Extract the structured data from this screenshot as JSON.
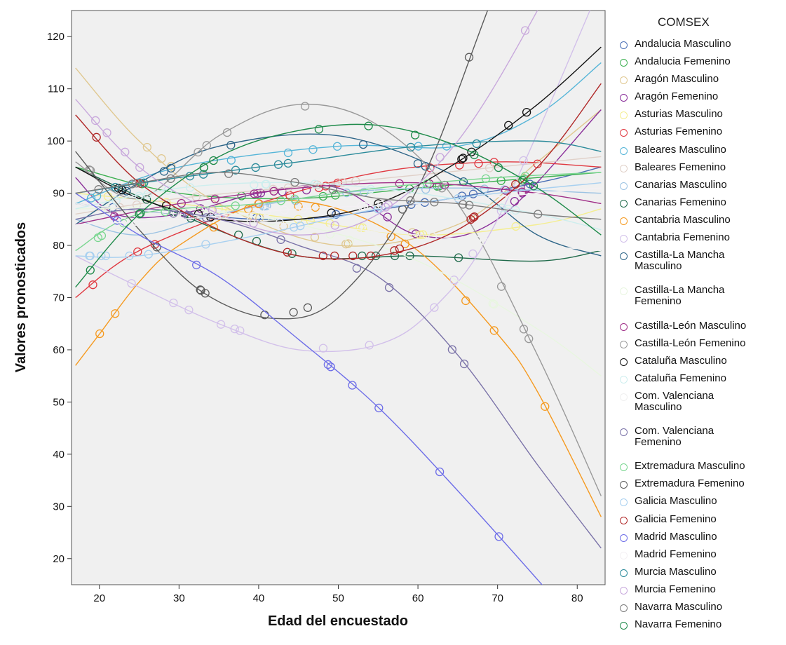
{
  "chart_data": {
    "type": "line",
    "xlabel": "Edad del encuestado",
    "ylabel": "Valores pronosticados",
    "xlim": [
      16.5,
      83.5
    ],
    "ylim": [
      15,
      125
    ],
    "x_ticks": [
      20,
      30,
      40,
      50,
      60,
      70,
      80
    ],
    "y_ticks": [
      20,
      30,
      40,
      50,
      60,
      70,
      80,
      90,
      100,
      110,
      120
    ],
    "grid": false,
    "legend_title": "COMSEX",
    "legend_position": "right",
    "series": [
      {
        "name": "Andalucia Masculino",
        "color": "#4a6fb5",
        "x": [
          17,
          30,
          45,
          60,
          75,
          83
        ],
        "y": [
          88,
          86,
          85,
          88,
          92,
          95
        ]
      },
      {
        "name": "Andalucia Femenino",
        "color": "#3cb050",
        "x": [
          17,
          30,
          45,
          60,
          75,
          83
        ],
        "y": [
          95,
          90,
          89,
          91,
          93,
          94
        ]
      },
      {
        "name": "Aragón Masculino",
        "color": "#e0c890",
        "x": [
          17,
          25,
          35,
          50,
          65,
          75,
          83
        ],
        "y": [
          114,
          100,
          88,
          80,
          84,
          96,
          106
        ]
      },
      {
        "name": "Aragón Femenino",
        "color": "#8a2f9a",
        "x": [
          17,
          22,
          30,
          40,
          50,
          60,
          70,
          83
        ],
        "y": [
          93,
          86,
          86,
          90,
          91,
          82,
          85,
          106
        ]
      },
      {
        "name": "Asturias Masculino",
        "color": "#f4ee90",
        "x": [
          17,
          30,
          45,
          60,
          75,
          83
        ],
        "y": [
          90,
          88,
          85,
          82,
          84,
          87
        ]
      },
      {
        "name": "Asturias Femenino",
        "color": "#e03840",
        "x": [
          17,
          25,
          40,
          55,
          70,
          83
        ],
        "y": [
          70,
          79,
          88,
          94,
          96,
          95
        ]
      },
      {
        "name": "Baleares Masculino",
        "color": "#55b5d8",
        "x": [
          17,
          30,
          50,
          65,
          75,
          83
        ],
        "y": [
          88,
          95,
          99,
          99,
          105,
          115
        ]
      },
      {
        "name": "Baleares Femenino",
        "color": "#e0d0c8",
        "x": [
          17,
          30,
          50,
          70,
          83
        ],
        "y": [
          86,
          89,
          92,
          95,
          97
        ]
      },
      {
        "name": "Canarias Masculino",
        "color": "#9cc3e3",
        "x": [
          17,
          25,
          35,
          50,
          65,
          83
        ],
        "y": [
          85,
          82,
          86,
          90,
          91,
          90
        ]
      },
      {
        "name": "Canarias Femenino",
        "color": "#1f6a4a",
        "x": [
          17,
          30,
          45,
          60,
          75,
          83
        ],
        "y": [
          95,
          86,
          78,
          78,
          77,
          79
        ]
      },
      {
        "name": "Cantabria Masculino",
        "color": "#f59a20",
        "x": [
          17,
          20,
          25,
          30,
          40,
          50,
          60,
          70,
          75,
          83
        ],
        "y": [
          57,
          63,
          73,
          80,
          88,
          87,
          79,
          63,
          52,
          28
        ]
      },
      {
        "name": "Cantabria Femenino",
        "color": "#d2c0ea",
        "x": [
          17,
          25,
          35,
          45,
          55,
          62,
          70,
          83
        ],
        "y": [
          78,
          72,
          65,
          60,
          61,
          68,
          85,
          130
        ]
      },
      {
        "name": "Castilla-La Mancha Masculino",
        "color": "#2d6588",
        "x": [
          17,
          25,
          35,
          50,
          65,
          75,
          83
        ],
        "y": [
          84,
          92,
          99,
          101,
          93,
          82,
          78
        ]
      },
      {
        "name": "Castilla-La Mancha Femenino",
        "color": "#e8f6e0",
        "x": [
          17,
          30,
          45,
          60,
          75,
          83
        ],
        "y": [
          87,
          87,
          84,
          77,
          64,
          55
        ]
      },
      {
        "name": "Castilla-León Masculino",
        "color": "#a03088",
        "x": [
          17,
          20,
          30,
          45,
          60,
          75,
          83
        ],
        "y": [
          84,
          85,
          88,
          91,
          92,
          90,
          88
        ]
      },
      {
        "name": "Castilla-León Femenino",
        "color": "#999999",
        "x": [
          17,
          25,
          35,
          45,
          55,
          65,
          75,
          83
        ],
        "y": [
          96,
          89,
          101,
          107,
          103,
          88,
          59,
          32
        ]
      },
      {
        "name": "Cataluña Masculino",
        "color": "#111111",
        "x": [
          17,
          25,
          35,
          45,
          55,
          65,
          75,
          83
        ],
        "y": [
          95,
          89,
          85,
          85,
          88,
          96,
          107,
          118
        ]
      },
      {
        "name": "Cataluña Femenino",
        "color": "#cdeeee",
        "x": [
          17,
          30,
          45,
          60,
          75,
          83
        ],
        "y": [
          87,
          91,
          92,
          90,
          86,
          83
        ]
      },
      {
        "name": "Com. Valenciana Masculino",
        "color": "#f0f0f0",
        "x": [
          17,
          30,
          45,
          60,
          75,
          83
        ],
        "y": [
          88,
          86,
          84,
          82,
          80,
          79
        ]
      },
      {
        "name": "Com. Valenciana Femenino",
        "color": "#7a72a8",
        "x": [
          17,
          25,
          35,
          45,
          55,
          65,
          75,
          83
        ],
        "y": [
          85,
          87,
          85,
          80,
          74,
          59,
          38,
          22
        ]
      },
      {
        "name": "Extremadura Masculino",
        "color": "#7ad690",
        "x": [
          17,
          25,
          40,
          55,
          70,
          83
        ],
        "y": [
          79,
          86,
          88,
          91,
          93,
          94
        ]
      },
      {
        "name": "Extremadura Femenino",
        "color": "#5a5a5a",
        "x": [
          17,
          25,
          33,
          42,
          50,
          60,
          70,
          83
        ],
        "y": [
          98,
          83,
          71,
          66,
          70,
          91,
          130,
          180
        ]
      },
      {
        "name": "Galicia Masculino",
        "color": "#a8d0f0",
        "x": [
          17,
          25,
          40,
          55,
          70,
          83
        ],
        "y": [
          78,
          78,
          82,
          87,
          90,
          92
        ]
      },
      {
        "name": "Galicia Femenino",
        "color": "#b02828",
        "x": [
          17,
          25,
          35,
          45,
          55,
          65,
          75,
          83
        ],
        "y": [
          105,
          92,
          83,
          78,
          78,
          83,
          95,
          111
        ]
      },
      {
        "name": "Madrid Masculino",
        "color": "#6d6de8",
        "x": [
          17,
          25,
          35,
          45,
          55,
          65,
          75,
          83
        ],
        "y": [
          90,
          82,
          74,
          62,
          49,
          33,
          16,
          2
        ]
      },
      {
        "name": "Madrid Femenino",
        "color": "#f4f0f4",
        "x": [
          17,
          30,
          45,
          60,
          75,
          83
        ],
        "y": [
          84,
          85,
          87,
          88,
          90,
          91
        ]
      },
      {
        "name": "Murcia Masculino",
        "color": "#2a8a9a",
        "x": [
          17,
          30,
          45,
          60,
          75,
          83
        ],
        "y": [
          90,
          93,
          96,
          99,
          100,
          98
        ]
      },
      {
        "name": "Murcia Femenino",
        "color": "#c8a8dc",
        "x": [
          17,
          25,
          35,
          45,
          55,
          65,
          75,
          83
        ],
        "y": [
          108,
          95,
          86,
          82,
          86,
          100,
          125,
          150
        ]
      },
      {
        "name": "Navarra Masculino",
        "color": "#7c7c7c",
        "x": [
          17,
          25,
          35,
          45,
          55,
          65,
          75,
          83
        ],
        "y": [
          90,
          92,
          94,
          92,
          89,
          88,
          86,
          85
        ]
      },
      {
        "name": "Navarra Femenino",
        "color": "#1e8a4a",
        "x": [
          17,
          25,
          35,
          45,
          55,
          65,
          75,
          83
        ],
        "y": [
          72,
          86,
          97,
          102,
          103,
          99,
          91,
          82
        ]
      }
    ]
  }
}
